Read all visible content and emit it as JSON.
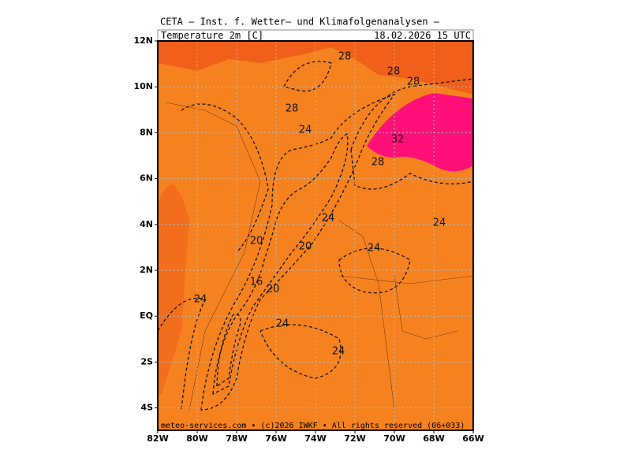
{
  "header": {
    "title": "CETA — Inst. f. Wetter— und Klimafolgenanalysen —",
    "variable": "Temperature_2m [C]",
    "datetime": "18.02.2026 15 UTC"
  },
  "footer": "meteo-services.com • (c)2026 IWKF • All rights reserved (06+033)",
  "map": {
    "lat_labels": [
      "12N",
      "10N",
      "8N",
      "6N",
      "4N",
      "2N",
      "EQ",
      "2S",
      "4S"
    ],
    "lon_labels": [
      "82W",
      "80W",
      "78W",
      "76W",
      "74W",
      "72W",
      "70W",
      "68W",
      "66W"
    ],
    "contour_labels": [
      "28",
      "28",
      "28",
      "28",
      "24",
      "32",
      "28",
      "24",
      "24",
      "20",
      "20",
      "24",
      "16",
      "20",
      "24",
      "24",
      "24"
    ]
  }
}
